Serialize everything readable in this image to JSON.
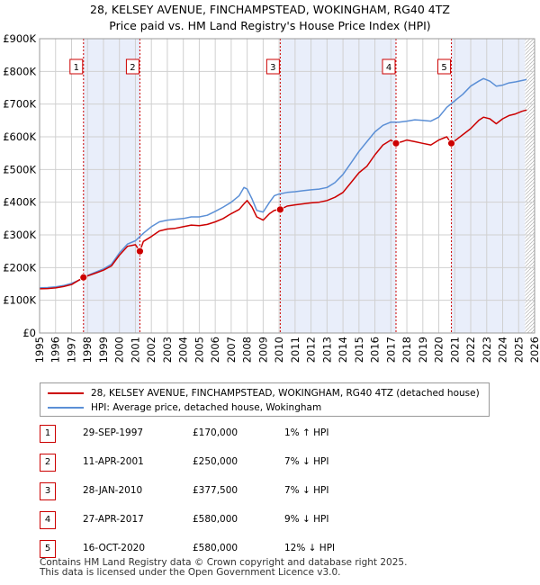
{
  "title_line1": "28, KELSEY AVENUE, FINCHAMPSTEAD, WOKINGHAM, RG40 4TZ",
  "title_line2": "Price paid vs. HM Land Registry's House Price Index (HPI)",
  "colors": {
    "price": "#cc0000",
    "hpi": "#5b8fd6",
    "band": "#e9eefa",
    "grid": "#d0d0d0",
    "vline": "#cc0000"
  },
  "chart_data": {
    "type": "line",
    "title": "28, KELSEY AVENUE, FINCHAMPSTEAD, WOKINGHAM, RG40 4TZ — Price paid vs. HM Land Registry's House Price Index (HPI)",
    "xlabel": "",
    "ylabel": "",
    "xlim": [
      1995,
      2026
    ],
    "ylim": [
      0,
      900000
    ],
    "ytick_values": [
      0,
      100000,
      200000,
      300000,
      400000,
      500000,
      600000,
      700000,
      800000,
      900000
    ],
    "ytick_labels": [
      "£0",
      "£100K",
      "£200K",
      "£300K",
      "£400K",
      "£500K",
      "£600K",
      "£700K",
      "£800K",
      "£900K"
    ],
    "xtick_values": [
      1995,
      1996,
      1997,
      1998,
      1999,
      2000,
      2001,
      2002,
      2003,
      2004,
      2005,
      2006,
      2007,
      2008,
      2009,
      2010,
      2011,
      2012,
      2013,
      2014,
      2015,
      2016,
      2017,
      2018,
      2019,
      2020,
      2021,
      2022,
      2023,
      2024,
      2025,
      2026
    ],
    "xtick_labels": [
      "1995",
      "1996",
      "1997",
      "1998",
      "1999",
      "2000",
      "2001",
      "2002",
      "2003",
      "2004",
      "2005",
      "2006",
      "2007",
      "2008",
      "2009",
      "2010",
      "2011",
      "2012",
      "2013",
      "2014",
      "2015",
      "2016",
      "2017",
      "2018",
      "2019",
      "2020",
      "2021",
      "2022",
      "2023",
      "2024",
      "2025",
      "2026"
    ],
    "series": [
      {
        "name": "28, KELSEY AVENUE, FINCHAMPSTEAD, WOKINGHAM, RG40 4TZ (detached house)",
        "color": "#cc0000",
        "x": [
          1995.0,
          1995.5,
          1996.0,
          1996.5,
          1997.0,
          1997.75,
          1998.5,
          1999.0,
          1999.5,
          2000.0,
          2000.5,
          2001.0,
          2001.28,
          2001.5,
          2002.0,
          2002.5,
          2003.0,
          2003.5,
          2004.0,
          2004.5,
          2005.0,
          2005.5,
          2006.0,
          2006.5,
          2007.0,
          2007.5,
          2007.8,
          2008.0,
          2008.3,
          2008.6,
          2009.0,
          2009.4,
          2009.7,
          2010.07,
          2010.5,
          2011.0,
          2011.5,
          2012.0,
          2012.5,
          2013.0,
          2013.5,
          2014.0,
          2014.5,
          2015.0,
          2015.5,
          2016.0,
          2016.5,
          2017.0,
          2017.32,
          2017.7,
          2018.0,
          2018.5,
          2019.0,
          2019.5,
          2020.0,
          2020.5,
          2020.79,
          2021.2,
          2021.6,
          2022.0,
          2022.5,
          2022.8,
          2023.2,
          2023.6,
          2024.0,
          2024.4,
          2024.8,
          2025.2,
          2025.5
        ],
        "values": [
          135000,
          136000,
          138000,
          142000,
          148000,
          170000,
          183000,
          192000,
          205000,
          238000,
          265000,
          270000,
          250000,
          280000,
          295000,
          312000,
          318000,
          320000,
          325000,
          330000,
          328000,
          332000,
          340000,
          350000,
          365000,
          378000,
          395000,
          405000,
          385000,
          355000,
          345000,
          365000,
          375000,
          377500,
          388000,
          392000,
          395000,
          398000,
          400000,
          405000,
          415000,
          430000,
          460000,
          490000,
          510000,
          545000,
          575000,
          590000,
          580000,
          585000,
          590000,
          585000,
          580000,
          575000,
          590000,
          600000,
          580000,
          595000,
          610000,
          625000,
          650000,
          660000,
          655000,
          640000,
          655000,
          665000,
          670000,
          678000,
          682000
        ]
      },
      {
        "name": "HPI: Average price, detached house, Wokingham",
        "color": "#5b8fd6",
        "x": [
          1995.0,
          1995.5,
          1996.0,
          1996.5,
          1997.0,
          1997.5,
          1998.0,
          1998.5,
          1999.0,
          1999.5,
          2000.0,
          2000.5,
          2001.0,
          2001.5,
          2002.0,
          2002.5,
          2003.0,
          2003.5,
          2004.0,
          2004.5,
          2005.0,
          2005.5,
          2006.0,
          2006.5,
          2007.0,
          2007.5,
          2007.8,
          2008.0,
          2008.3,
          2008.6,
          2009.0,
          2009.4,
          2009.7,
          2010.0,
          2010.5,
          2011.0,
          2011.5,
          2012.0,
          2012.5,
          2013.0,
          2013.5,
          2014.0,
          2014.5,
          2015.0,
          2015.5,
          2016.0,
          2016.5,
          2017.0,
          2017.5,
          2018.0,
          2018.5,
          2019.0,
          2019.5,
          2020.0,
          2020.5,
          2021.0,
          2021.5,
          2022.0,
          2022.5,
          2022.8,
          2023.2,
          2023.6,
          2024.0,
          2024.4,
          2024.8,
          2025.2,
          2025.5
        ],
        "values": [
          138000,
          139000,
          141000,
          145000,
          152000,
          162000,
          176000,
          186000,
          196000,
          210000,
          245000,
          272000,
          282000,
          305000,
          325000,
          340000,
          345000,
          348000,
          350000,
          355000,
          355000,
          360000,
          372000,
          385000,
          400000,
          420000,
          445000,
          440000,
          410000,
          375000,
          370000,
          400000,
          420000,
          425000,
          430000,
          432000,
          435000,
          438000,
          440000,
          445000,
          460000,
          485000,
          520000,
          555000,
          585000,
          615000,
          635000,
          645000,
          645000,
          648000,
          652000,
          650000,
          648000,
          660000,
          690000,
          710000,
          730000,
          755000,
          770000,
          778000,
          770000,
          755000,
          758000,
          765000,
          768000,
          772000,
          775000
        ]
      }
    ],
    "sales": [
      {
        "label": "1",
        "x": 1997.75,
        "value": 170000
      },
      {
        "label": "2",
        "x": 2001.28,
        "value": 250000
      },
      {
        "label": "3",
        "x": 2010.07,
        "value": 377500
      },
      {
        "label": "4",
        "x": 2017.32,
        "value": 580000
      },
      {
        "label": "5",
        "x": 2020.79,
        "value": 580000
      }
    ],
    "shaded_bands": [
      [
        1997.75,
        2001.28
      ],
      [
        2010.07,
        2017.32
      ],
      [
        2020.79,
        2025.4
      ]
    ],
    "hatched_from": 2025.4
  },
  "legend": {
    "price_label": "28, KELSEY AVENUE, FINCHAMPSTEAD, WOKINGHAM, RG40 4TZ (detached house)",
    "hpi_label": "HPI: Average price, detached house, Wokingham"
  },
  "transactions": [
    {
      "num": "1",
      "date": "29-SEP-1997",
      "price": "£170,000",
      "hpi": "1% ↑ HPI"
    },
    {
      "num": "2",
      "date": "11-APR-2001",
      "price": "£250,000",
      "hpi": "7% ↓ HPI"
    },
    {
      "num": "3",
      "date": "28-JAN-2010",
      "price": "£377,500",
      "hpi": "7% ↓ HPI"
    },
    {
      "num": "4",
      "date": "27-APR-2017",
      "price": "£580,000",
      "hpi": "9% ↓ HPI"
    },
    {
      "num": "5",
      "date": "16-OCT-2020",
      "price": "£580,000",
      "hpi": "12% ↓ HPI"
    }
  ],
  "footer_line1": "Contains HM Land Registry data © Crown copyright and database right 2025.",
  "footer_line2": "This data is licensed under the Open Government Licence v3.0."
}
